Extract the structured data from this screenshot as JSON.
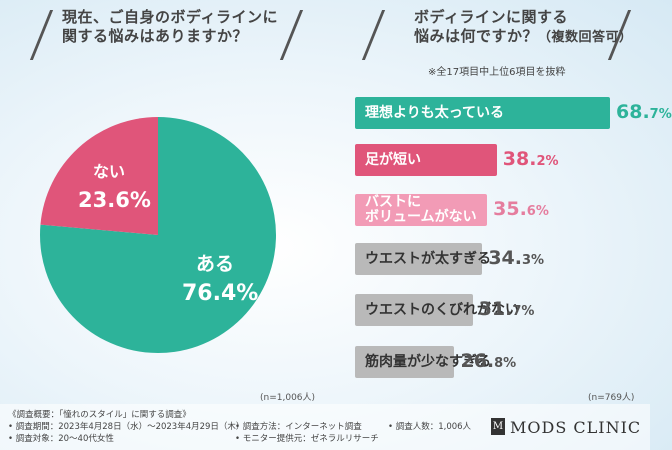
{
  "question1": {
    "line1": "現在、ご自身のボディラインに",
    "line2": "関する悩みはありますか？"
  },
  "question2": {
    "line1": "ボディラインに関する",
    "line2": "悩みは何ですか？",
    "line2_small": "（複数回答可）",
    "note": "※全17項目中上位6項目を抜粋"
  },
  "chart_data": [
    {
      "type": "pie",
      "title": "現在、ご自身のボディラインに関する悩みはありますか？",
      "labels": [
        "ある",
        "ない"
      ],
      "values": [
        76.4,
        23.6
      ],
      "value_labels": [
        "76.4%",
        "23.6%"
      ],
      "colors": [
        "#2db39a",
        "#e0557a"
      ],
      "n": "(n=1,006人)"
    },
    {
      "type": "bar",
      "title": "ボディラインに関する悩みは何ですか？（複数回答可）",
      "categories": [
        "理想よりも太っている",
        "足が短い",
        "バストにボリュームがない",
        "ウエストが太すぎる",
        "ウエストのくびれがない",
        "筋肉量が少なすぎる"
      ],
      "category_lines": [
        [
          "理想よりも太っている"
        ],
        [
          "足が短い"
        ],
        [
          "バストに",
          "ボリュームがない"
        ],
        [
          "ウエストが太すぎる"
        ],
        [
          "ウエストのくびれがない"
        ],
        [
          "筋肉量が少なすぎる"
        ]
      ],
      "values": [
        68.7,
        38.2,
        35.6,
        34.3,
        31.7,
        26.8
      ],
      "value_int": [
        "68.",
        "38.",
        "35.",
        "34.",
        "31.",
        "26."
      ],
      "value_dec": [
        "7%",
        "2%",
        "6%",
        "3%",
        "7%",
        "8%"
      ],
      "colors": [
        "#2db39a",
        "#e0557a",
        "#f29bb6",
        "#b9b9b9",
        "#b9b9b9",
        "#b9b9b9"
      ],
      "value_colors": [
        "#2db39a",
        "#e0557a",
        "#e57d9e",
        "#555555",
        "#555555",
        "#555555"
      ],
      "xlim": [
        0,
        100
      ],
      "n": "(n=769人)"
    }
  ],
  "footer": {
    "summary": "《調査概要：「憧れのスタイル」に関する調査》",
    "period": "• 調査期間：2023年4月28日（水）～2023年4月29日（木）",
    "target": "• 調査対象：20～40代女性",
    "method": "• 調査方法：インターネット調査",
    "provider": "• モニター提供元：ゼネラルリサーチ",
    "count": "• 調査人数：1,006人"
  },
  "logo": {
    "mark": "M",
    "text": "MODS CLINIC"
  }
}
